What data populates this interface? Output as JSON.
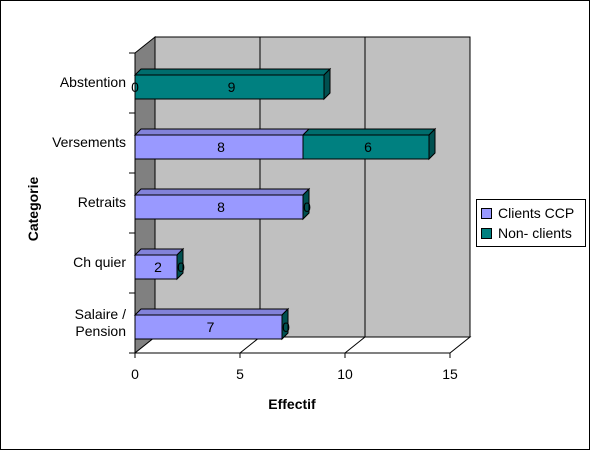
{
  "chart_data": {
    "type": "bar",
    "orientation": "horizontal",
    "stacked": true,
    "style_3d": true,
    "categories": [
      "Abstention",
      "Versements",
      "Retraits",
      "Ch  quier",
      "Salaire /\nPension"
    ],
    "series": [
      {
        "name": "Clients CCP",
        "values": [
          0,
          8,
          8,
          2,
          7
        ],
        "color": "#9999ff"
      },
      {
        "name": "Non- clients",
        "values": [
          9,
          6,
          0,
          0,
          0
        ],
        "color": "#008080"
      }
    ],
    "xlabel": "Effectif",
    "ylabel": "Categorie",
    "xlim": [
      0,
      15
    ],
    "xticks": [
      "0",
      "5",
      "10",
      "15"
    ],
    "grid": true,
    "legend_position": "right",
    "colors": {
      "plot_wall": "#c0c0c0",
      "side_wall": "#808080",
      "top_clients": "#5555cc",
      "top_nonclients": "#005050"
    }
  }
}
